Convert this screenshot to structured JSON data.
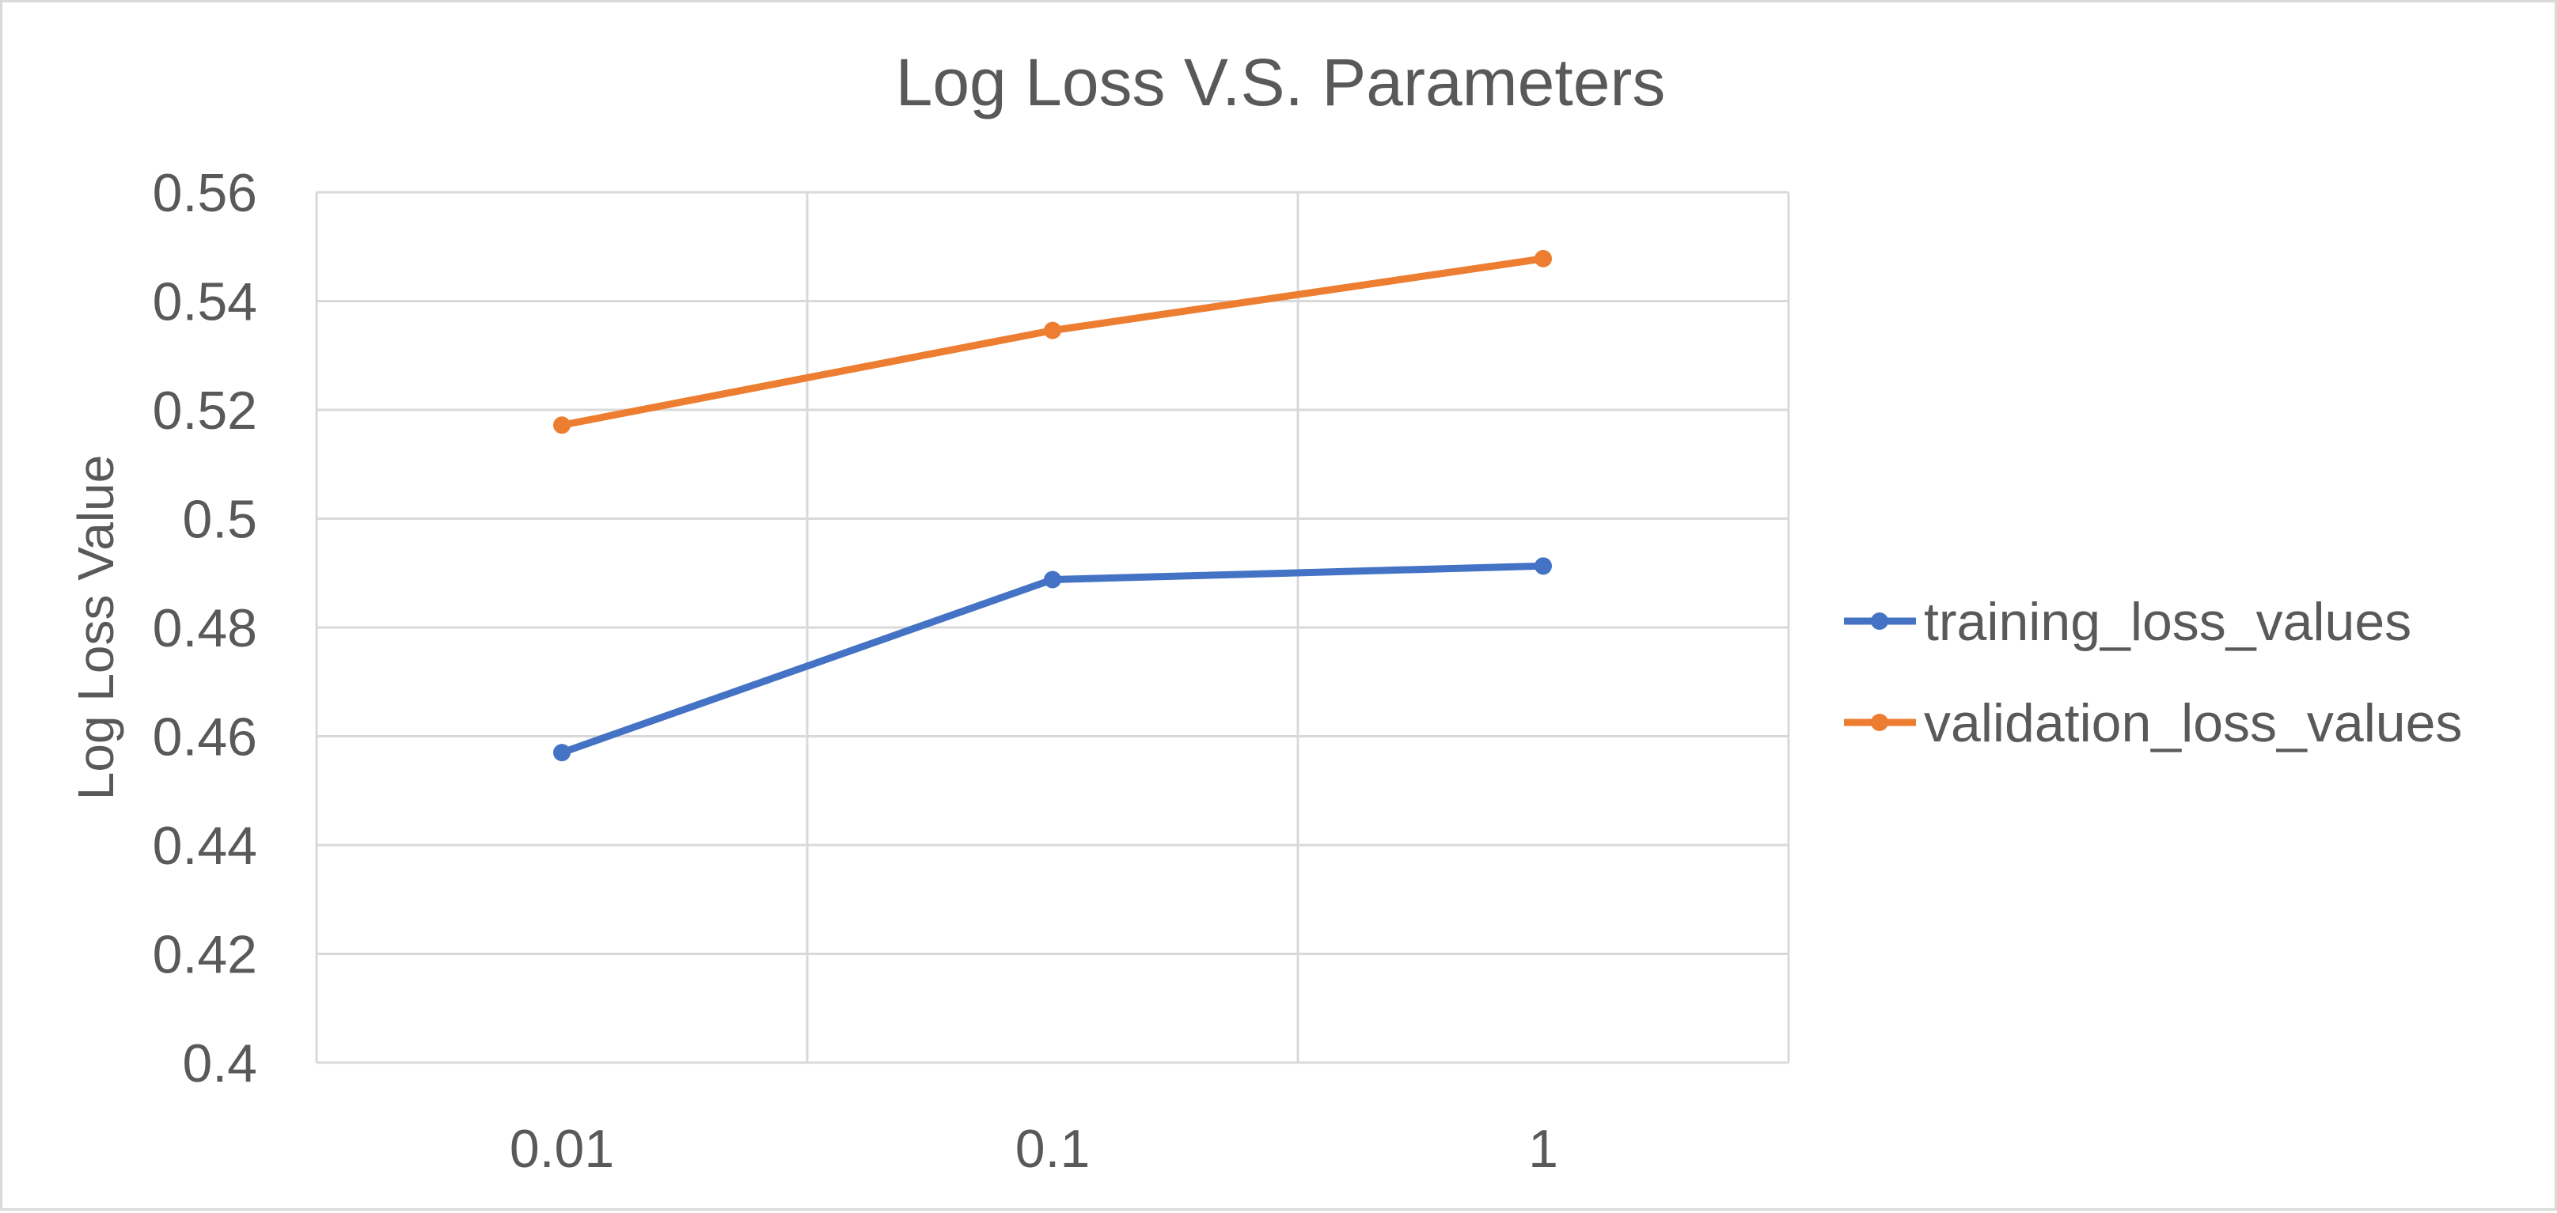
{
  "chart_data": {
    "type": "line",
    "title": "Log Loss V.S. Parameters",
    "xlabel": "",
    "ylabel": "Log Loss Value",
    "categories": [
      "0.01",
      "0.1",
      "1"
    ],
    "ylim": [
      0.4,
      0.56
    ],
    "yticks": [
      "0.4",
      "0.42",
      "0.44",
      "0.46",
      "0.48",
      "0.5",
      "0.52",
      "0.54",
      "0.56"
    ],
    "grid": true,
    "legend": "right",
    "series": [
      {
        "name": "training_loss_values",
        "values": [
          0.457,
          0.4888,
          0.4913
        ],
        "color": "#4472c4"
      },
      {
        "name": "validation_loss_values",
        "values": [
          0.5172,
          0.5346,
          0.5478
        ],
        "color": "#ed7d31"
      }
    ]
  },
  "colors": {
    "grid": "#d9d9d9",
    "text": "#595959"
  }
}
